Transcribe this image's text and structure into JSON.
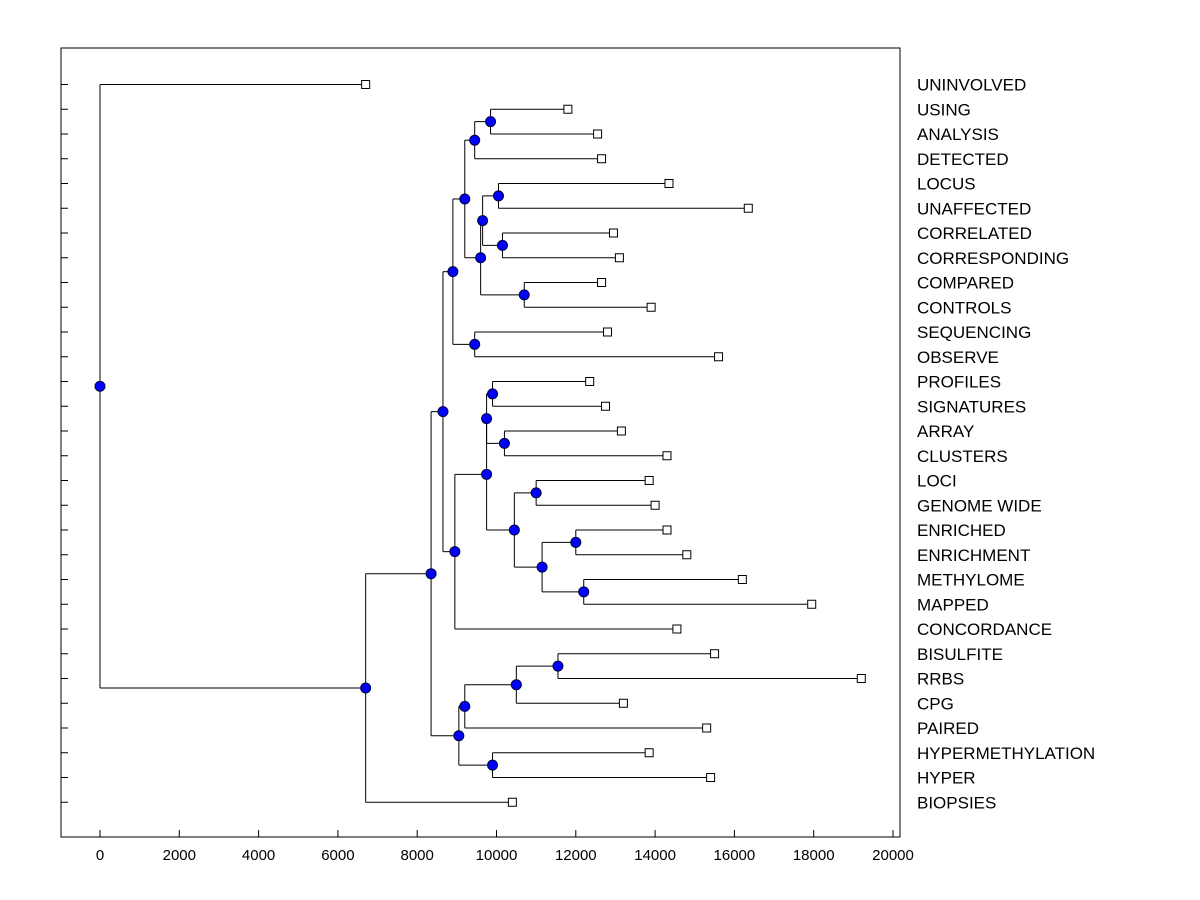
{
  "chart_data": {
    "type": "dendrogram",
    "title": "",
    "xlabel": "",
    "ylabel": "",
    "xlim": [
      -1000,
      20000
    ],
    "x_ticks": [
      "0",
      "2000",
      "4000",
      "6000",
      "8000",
      "10000",
      "12000",
      "14000",
      "16000",
      "18000",
      "20000"
    ],
    "leaves": [
      {
        "label": "UNINVOLVED",
        "value": 6700
      },
      {
        "label": "USING",
        "value": 11800
      },
      {
        "label": "ANALYSIS",
        "value": 12550
      },
      {
        "label": "DETECTED",
        "value": 12650
      },
      {
        "label": "LOCUS",
        "value": 14350
      },
      {
        "label": "UNAFFECTED",
        "value": 16350
      },
      {
        "label": "CORRELATED",
        "value": 12950
      },
      {
        "label": "CORRESPONDING",
        "value": 13100
      },
      {
        "label": "COMPARED",
        "value": 12650
      },
      {
        "label": "CONTROLS",
        "value": 13900
      },
      {
        "label": "SEQUENCING",
        "value": 12800
      },
      {
        "label": "OBSERVE",
        "value": 15600
      },
      {
        "label": "PROFILES",
        "value": 12350
      },
      {
        "label": "SIGNATURES",
        "value": 12750
      },
      {
        "label": "ARRAY",
        "value": 13150
      },
      {
        "label": "CLUSTERS",
        "value": 14300
      },
      {
        "label": "LOCI",
        "value": 13850
      },
      {
        "label": "GENOME WIDE",
        "value": 14000
      },
      {
        "label": "ENRICHED",
        "value": 14300
      },
      {
        "label": "ENRICHMENT",
        "value": 14800
      },
      {
        "label": "METHYLOME",
        "value": 16200
      },
      {
        "label": "MAPPED",
        "value": 17950
      },
      {
        "label": "CONCORDANCE",
        "value": 14550
      },
      {
        "label": "BISULFITE",
        "value": 15500
      },
      {
        "label": "RRBS",
        "value": 19200
      },
      {
        "label": "CPG",
        "value": 13200
      },
      {
        "label": "PAIRED",
        "value": 15300
      },
      {
        "label": "HYPERMETHYLATION",
        "value": 13850
      },
      {
        "label": "HYPER",
        "value": 15400
      },
      {
        "label": "BIOPSIES",
        "value": 10400
      }
    ],
    "nodes": [
      {
        "id": "n1",
        "value": 9850,
        "children": [
          "USING",
          "ANALYSIS"
        ]
      },
      {
        "id": "n2",
        "value": 9450,
        "children": [
          "n1",
          "DETECTED"
        ]
      },
      {
        "id": "n3",
        "value": 10050,
        "children": [
          "LOCUS",
          "UNAFFECTED"
        ]
      },
      {
        "id": "n4",
        "value": 10150,
        "children": [
          "CORRELATED",
          "CORRESPONDING"
        ]
      },
      {
        "id": "n5",
        "value": 9650,
        "children": [
          "n3",
          "n4"
        ]
      },
      {
        "id": "n6",
        "value": 10700,
        "children": [
          "COMPARED",
          "CONTROLS"
        ]
      },
      {
        "id": "n7",
        "value": 9600,
        "children": [
          "n5",
          "n6"
        ]
      },
      {
        "id": "n8",
        "value": 9200,
        "children": [
          "n2",
          "n7"
        ]
      },
      {
        "id": "n9",
        "value": 9450,
        "children": [
          "SEQUENCING",
          "OBSERVE"
        ]
      },
      {
        "id": "n10",
        "value": 8900,
        "children": [
          "n8",
          "n9"
        ]
      },
      {
        "id": "n11",
        "value": 9900,
        "children": [
          "PROFILES",
          "SIGNATURES"
        ]
      },
      {
        "id": "n12",
        "value": 10200,
        "children": [
          "ARRAY",
          "CLUSTERS"
        ]
      },
      {
        "id": "n13",
        "value": 9750,
        "children": [
          "n11",
          "n12"
        ]
      },
      {
        "id": "n14",
        "value": 11000,
        "children": [
          "LOCI",
          "GENOME WIDE"
        ]
      },
      {
        "id": "n15",
        "value": 12000,
        "children": [
          "ENRICHED",
          "ENRICHMENT"
        ]
      },
      {
        "id": "n16",
        "value": 12200,
        "children": [
          "METHYLOME",
          "MAPPED"
        ]
      },
      {
        "id": "n17",
        "value": 11150,
        "children": [
          "n15",
          "n16"
        ]
      },
      {
        "id": "n18",
        "value": 10450,
        "children": [
          "n14",
          "n17"
        ]
      },
      {
        "id": "n19",
        "value": 9750,
        "children": [
          "n13",
          "n18"
        ]
      },
      {
        "id": "n20",
        "value": 8950,
        "children": [
          "n19",
          "CONCORDANCE"
        ]
      },
      {
        "id": "n21",
        "value": 8650,
        "children": [
          "n10",
          "n20"
        ]
      },
      {
        "id": "n22",
        "value": 11550,
        "children": [
          "BISULFITE",
          "RRBS"
        ]
      },
      {
        "id": "n23",
        "value": 10500,
        "children": [
          "n22",
          "CPG"
        ]
      },
      {
        "id": "n24",
        "value": 9200,
        "children": [
          "n23",
          "PAIRED"
        ]
      },
      {
        "id": "n25",
        "value": 9900,
        "children": [
          "HYPERMETHYLATION",
          "HYPER"
        ]
      },
      {
        "id": "n26",
        "value": 9050,
        "children": [
          "n24",
          "n25"
        ]
      },
      {
        "id": "n27",
        "value": 8350,
        "children": [
          "n21",
          "n26"
        ]
      },
      {
        "id": "n28",
        "value": 6700,
        "children": [
          "n27",
          "BIOPSIES"
        ]
      },
      {
        "id": "n29",
        "value": 0,
        "children": [
          "UNINVOLVED",
          "n28"
        ]
      }
    ]
  }
}
